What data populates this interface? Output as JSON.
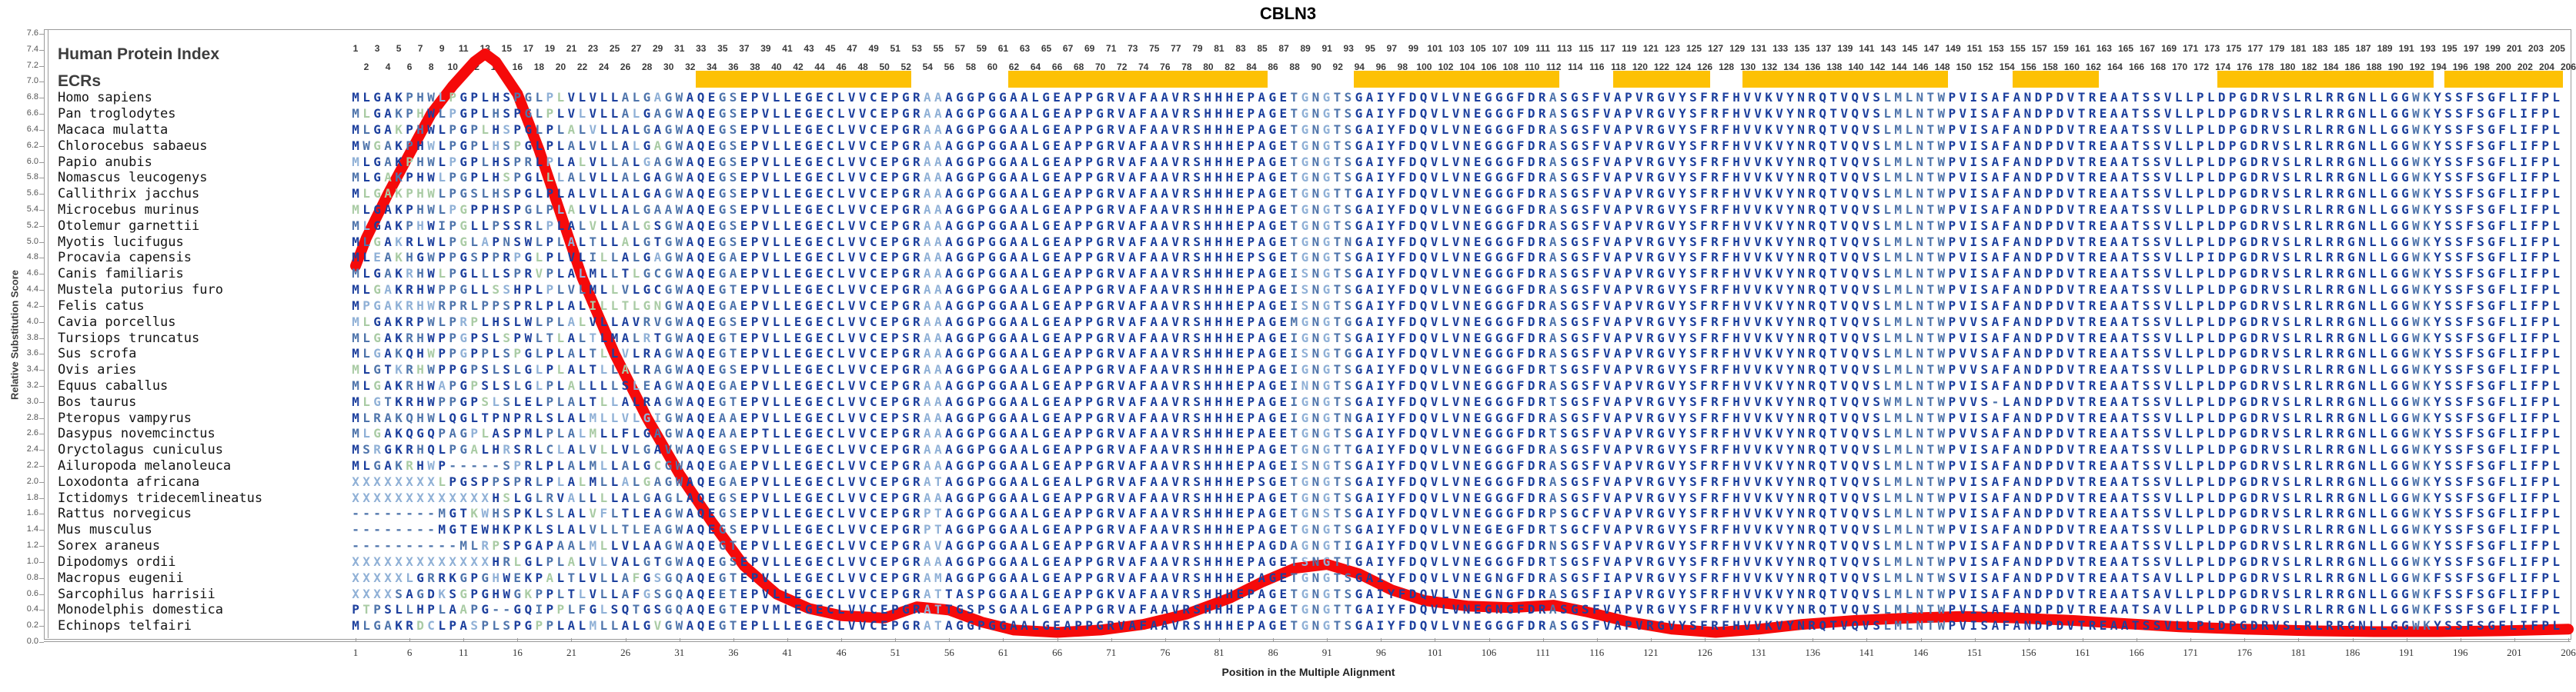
{
  "title": "CBLN3",
  "y_axis": {
    "label": "Relative Substitution Score",
    "min": 0.0,
    "max": 7.6,
    "step": 0.2
  },
  "x_axis": {
    "label": "Position in the Multiple Alignment",
    "tick_start": 1,
    "tick_step": 5,
    "tick_end": 206
  },
  "left_panel": {
    "header": "Human Protein Index",
    "ecr_label": "ECRs"
  },
  "alignment": {
    "num_positions": 206,
    "species": [
      {
        "name": "Homo sapiens",
        "seq": "MLGAKPHWLPGPLHSPGLPLVLVLLALGAGWAQEGSEPVLLEGECLVVCEPGRAAAGGPGGAALGEAPPGRVAFAAVRSHHHEPAGETGNGTSGAIYFDQVLVNEGGGFDRASGSFVAPVRGVYSFRFHVVKVYNRQTVQVSLMLNTWPVISAFANDPDVTREAATSSVLLPLDPGDRVSLRLRRGNLLGGWKYSSFSGFLIFPL"
      },
      {
        "name": "Pan troglodytes",
        "seq": "MLGAKPHWLPGPLHSPGLPLVLVLLALGAGWAQEGSEPVLLEGECLVVCEPGRAAAGGPGGAALGEAPPGRVAFAAVRSHHHEPAGETGNGTSGAIYFDQVLVNEGGGFDRASGSFVAPVRGVYSFRFHVVKVYNRQTVQVSLMLNTWPVISAFANDPDVTREAATSSVLLPLDPGDRVSLRLRRGNLLGGWKYSSFSGFLIFPL"
      },
      {
        "name": "Macaca mulatta",
        "seq": "MLGAKPHWLPGPLHSPGLPLALVLLALGAGWAQEGSEPVLLEGECLVVCEPGRAAAGGPGGAALGEAPPGRVAFAAVRSHHHEPAGETGNGTSGAIYFDQVLVNEGGGFDRASGSFVAPVRGVYSFRFHVVKVYNRQTVQVSLMLNTWPVISAFANDPDVTREAATSSVLLPLDPGDRVSLRLRRGNLLGGWKYSSFSGFLIFPL"
      },
      {
        "name": "Chlorocebus sabaeus",
        "seq": "MWGAKPHWLPGPLHSPGLPLALVLLALGAGWAQEGSEPVLLEGECLVVCEPGRAAAGGPGGAALGEAPPGRVAFAAVRSHHHEPAGETGNGTSGAIYFDQVLVNEGGGFDRASGSFVAPVRGVYSFRFHVVKVYNRQTVQVSLMLNTWPVISAFANDPDVTREAATSSVLLPLDPGDRVSLRLRRGNLLGGWKYSSFSGFLIFPL"
      },
      {
        "name": "Papio anubis",
        "seq": "MLGAKPHWLPGPLHSPRLPLALVLLALGAGWAQEGSEPVLLEGECLVVCEPGRAAAGGPGGAALGEAPPGRVAFAAVRSHHHEPAGETGNGTSGAIYFDQVLVNEGGGFDRASGSFVAPVRGVYSFRFHVVKVYNRQTVQVSLMLNTWPVISAFANDPDVTREAATSSVLLPLDPGDRVSLRLRRGNLLGGWKYSSFSGFLIFPL"
      },
      {
        "name": "Nomascus leucogenys",
        "seq": "MLGAKPHWLPGPLHSPGLLLALVLLALGAGWAQEGSEPVLLEGECLVVCEPGRAAAGGPGGAALGEAPPGRVAFAAVRSHHHEPAGETGNGTSGAIYFDQVLVNEGGGFDRASGSFVAPVRGVYSFRFHVVKVYNRQTVQVSLMLNTWPVISAFANDPDVTREAATSSVLLPLDPGDRVSLRLRRGNLLGGWKYSSFSGFLIFPL"
      },
      {
        "name": "Callithrix jacchus",
        "seq": "MLGAKPHWLPGSLHSPGLPLALVLLALGAGWAQEGSEPVLLEGECLVVCEPGRAAAGGPGGAALGEAPPGRVAFAAVRSHHHEPAGETGNGTTGAIYFDQVLVNEGGGFDRASGSFVAPVRGVYSFRFHVVKVYNRQTVQVSLMLNTWPVISAFANDPDVTREAATSSVLLPLDPGDRVSLRLRRGNLLGGWKYSSFSGFLIFPL"
      },
      {
        "name": "Microcebus murinus",
        "seq": "MLGAKPHWLPGPPHSPGLPLALVLLALGAAWAQEGSEPVLLEGECLVVCEPGRAAAGGPGGAALGEAPPGRVAFAAVRSHHHEPAGETGNGTSGAIYFDQVLVNEGGGFDRASGSFVAPVRGVYSFRFHVVKVYNRQTVQVSLMLNTWPVISAFANDPDVTREAATSSVLLPLDPGDRVSLRLRRGNLLGGWKYSSFSGFLIFPL"
      },
      {
        "name": "Otolemur garnettii",
        "seq": "MLGAKPHWIPGLLPSSRLPLALVLLALGSGWAQEGSEPVLLEGECLVVCEPGRAAAGGPGGAALGEAPPGRVAFAAVRSHHHEPAGETGNGTSGAIYFDQVLVNEGGGFDRASGSFVAPVRGVYSFRFHVVKVYNRQTVQVSLMLNTWPVISAFANDPDVTREAATSSVLLPLDPGDRVSLRLRRGNLLGGWKYSSFSGFLIFPL"
      },
      {
        "name": "Myotis lucifugus",
        "seq": "MLGAKRLWLPGLAPNSWLPLALTLLALGTGWAQEGSEPVLLEGECLVVCEPGRAAAGGPGGAALGEAPPGRVAFAAVRSHHHEPAGETGNGTNGAIYFDQVLVNEGGGFDRASGSFVAPVRGVYSFRFHVVKVYNRQTVQVSLMLNTWPVISAFANDPDVTREAATSSVLLPLDPGDRVSLRLRRGNLLGGWKYSSFSGFLIFPL"
      },
      {
        "name": "Procavia capensis",
        "seq": "MLEAKHGWPPGSPPRPGLPLVLILLALGAGWAQEGAEPVLLEGECLVVCEPGRAAAGGPGGAALGEAPPGRVAFAAVRSHHHEPSGETGNGTSGAIYFDQVLVNEGGGFDRASGSFVAPVRGVYSFRFHVVKVYNRQTVQVSLMLNTWPVISAFANDPDVTREAATSSVLLPIDPGDRVSLRLRRGNLLGGWKYSSFSGFLIFPL"
      },
      {
        "name": "Canis familiaris",
        "seq": "MLGAKRHWLPGLLLSPRVPLALMLLTLGCGWAQEGAEPVLLEGECLVVCEPGRAAAGGPGGAALGEAPPGRVAFAAVRSHHHEPAGEISNGTSGAIYFDQVLVNEGGGFDRASGSFVAPVRGVYSFRFHVVKVYNRQTVQVSLMLNTWPVISAFANDPDVTREAATSSVLLPLDPGDRVSLRLRRGNLLGGWKYSSFSGFLIFPL"
      },
      {
        "name": "Mustela putorius furo",
        "seq": "MLGAKRHWPPGLLSSHPLPLVLMLLVLGCGWAQEGTEPVLLEGECLVVCEPGRAAAGGPGGAALGEAPPGRVAFAAVRSHHHEPAGEISNGTSGAIYFDQVLVNEGGGFDRASGSFVAPVRGVYSFRFHVVKVYNRQTVQVSLMLNTWPVISAFANDPDVTREAATSSVLLPLDPGDRVSLRLRRGNLLGGWKYSSFSGFLIFPL"
      },
      {
        "name": "Felis catus",
        "seq": "MPGAKRHWRPRLPPSPRLPLALILLTLGNGWAQEGAEPVLLEGECLVVCEPGRAAAGGPGGAALGEAPPGRVAFAAVRSHHHEPAGEISNGTSGAIYFDQVLVNEGGGFDRASGSFVAPVRGVYSFRFHVVKVYNRQTVQVSLMLNTWPVISAFANDPDVTREAATSSVLLPLDPGDRVSLRLRRGNLLGGWKYSSFSGFLIFPL"
      },
      {
        "name": "Cavia porcellus",
        "seq": "MLGAKRPWLPRPLHSLWLPLALVLLAVRVGWAQEGSEPVLLEGECLVVCEPGRAAAGGPGGAALGEAPPGRVAFAAVRSHHHEPAGEMGNGTGGAIYFDQVLVNEGGGFDRASGSFVAPVRGVYSFRFHVVKVYNRQTVQVSLMLNTWPVVSAFANDPDVTREAATSSVLLPLDPGDRVSLRLRRGNLLGGWKYSSFSGFLIFPL"
      },
      {
        "name": "Tursiops truncatus",
        "seq": "MLGAKRHWPPGPSLSPWLTLALTLMALRTGWAQEGTEPVLLEGECLVVCEPSRAAAGGPGGAALGEAPPGRVAFAAVRSHHHEPAGEIGNGTSGAIYFDQVLVNEGGGFDRASGSFVAPVRGVYSFRFHVVKVYNRQTVQVSLMLNTWPVISAFANDPDVTREAATSSVLLPLDPGDRVSLRLRRGNLLGGWKYSSFSGFLIFPL"
      },
      {
        "name": "Sus scrofa",
        "seq": "MLGAKQHWPPGPPLSPGLPLALTLLVLRAGWAQEGTEPVLLEGECLVVCEPGRAAAGGPGGAALGEAPPGRVAFAAVRSHHHEPAGEISNGTGGAIYFDQVLVNEGGGFDRASGSFVAPVRGVYSFRFHVVKVYNRQTVQVSLMLNTWPVVSAFANDPDVTREAATSSVLLPLDPGDRVSLRLRRGNLLGGWKYSSFSGFLIFPL"
      },
      {
        "name": "Ovis aries",
        "seq": "MLGTKRHWPPGPSLSLGLPLALTLLALRAGWAQEGSEPVLLEGECLVVCEPGRAAAGGPGGAALGEAPPGRVAFAAVRSHHHEPAGEIGNGTSGAIYFDQVLVNEGGGFDRTSGSFVAPVRGVYSFRFHVVKVYNRQTVQVSLMLNTWPVVSAFANDPDVTREAATSSVLLPLDPGDRVSLRLRRGNLLGGWKYSSFSGFLIFPL"
      },
      {
        "name": "Equus caballus",
        "seq": "MLGAKRHWAPGPSLSLGLPLALLLLSLEAGWAQEGAEPVLLEGECLVVCEPGRAAAGGPGGAALGEAPPGRVAFAAVRSHHHEPAGEINNGTSGAIYFDQVLVNEGGGFDRASGSFVAPVRGVYSFRFHVVKVYNRQTVQVSLMLNTWPVISAFANDPDVTREAATSSVLLPLDPGDRVSLRLRRGNLLGGWKYSSFSGFLIFPL"
      },
      {
        "name": "Bos taurus",
        "seq": "MLGTKRHWPPGPSLSLELPLALTLLALRAGWAQEGTEPVLLEGECLVVCEPGRAAAGGPGGAALGEAPPGRVAFAAVRSHHHEPAGEIGNGTSGAIYFDQVLVNEGGGFDRTSGSFVAPVRGVYSFRFHVVKVYNRQTVQVSWMLNTWPVVS-LANDPDVTREAATSSVLLPLDPGDRVSLRLRRGNLLGGWKYSSFSGFLIFPL"
      },
      {
        "name": "Pteropus vampyrus",
        "seq": "MLRAKQHWLQGLTPNPRLSLALMLLVLGIGWAQEAAEPVLLEGECLVVCEPSRAAAGGPGGAALGEAPPGRVAFAAVRSHHHEPAGEIGNGTNGAIYFDQVLVNEGGGFDRASGSFVAPVRGVYSFRFHVVKVYNRQTVQVSLMLNTWPVISAFANDPDVTREAATSSVLLPLDPGDRVSLRLRRGNLLGGWKYSSFSGFLIFPL"
      },
      {
        "name": "Dasypus novemcinctus",
        "seq": "MLGAKQGQPAGPLASPMLPLALMLLFLGAGWAQEAAEPTLLEGECLVVCEPGRAAAGGPGGAALGEAPPGRVAFAAVRSHHHEPAEETGNGTSGAIYFDQVLVNEGGGFDRTSGSFVAPVRGVYSFRFHVVKVYNRQTVQVSLMLNTWPVVSAFANDPDVTREAATSSVLLPLDPGDRVSLRLRRGNLLGGWKYSSFSGFLIFPL"
      },
      {
        "name": "Oryctolagus cuniculus",
        "seq": "MSRGKRHQLPGALHRSRLCLALVLLVLGAVWAQEGSEPVLLEGECLVVCEPGRAAAGGPGGAALGEAPPGRVAFAAVRSHHHEPAGETGNGTTGAIYFDQVLVNEGGGFDRASGSFVAPVRGVYSFRFHVVKVYNRQTVQVSLMLNTWPVISAFANDPDVTREAATSSVLLPLDPGDRVSLRLRRGNLLGGWKYSSFSGFLIFPL"
      },
      {
        "name": "Ailuropoda melanoleuca",
        "seq": "MLGAKRHWP-----SPRLPLALMLLALGCGWAQEGAEPVLLEGECLVVCEPGRAAAGGPGGAALGEAPPGRVAFAAVRSHHHEPAGEISNGTSGAIYFDQVLVNEGGGFDRASGSFVAPVRGVYSFRFHVVKVYNRQTVQVSLMLNTWPVISAFANDPDVTREAATSSVLLPLDPGDRVSLRLRRGNLLGGWKYSSFSGFLIFPL"
      },
      {
        "name": "Loxodonta africana",
        "seq": "XXXXXXXXLPGSPPSPRLPLALMLLALGAGWAQEGAEPVLLEGECLVVCEPGRATAGGPGGAALGEALPGRVAFAAVRSHHHEPSGETGNGTSGAIYFDQVLVNEGGGFDRASGSFVAPVRGVYSFRFHVVKVYNRQTVQVSLMLNTWPVISAFANDPDVTREAATSSVLLPLDPGDRVSLRLRRGNLLGGWKYSSFSGFLIFPL"
      },
      {
        "name": "Ictidomys tridecemlineatus",
        "seq": "XXXXXXXXXXXXXHSLGLRVALLLLALGAGLAQEGSEPVLLEGECLVVCEPGRAAAGGPGGAALGEAPPGRVAFAAVRSHHHEPAGETGNGTSGAIYFDQVLVNEGGGFDRASGSFVAPVRGVYSFRFHVVKVYNRQTVQVSLMLNTWPVISAFANDPDVTREAATSSVLLPLDPGDRVSLRLRRGNLLGGWKYSSFSGFLIFPL"
      },
      {
        "name": "Rattus norvegicus",
        "seq": "--------MGTKWHSPKLSLALVFLTLEAGWAQEGSEPVLLEGECLVVCEPGRPTAGGPGGAALGEAPPGRVAFAAVRSHHHEPAGETGNSTSGAIYFDQVLVNEGGGFDRPSGCFVAPVRGVYSFRFHVVKVYNRQTVQVSLMLNTWPVISAFANDPDVTREAATSSVLLPLDPGDRVSLRLRRGNLLGGWKYSSFSGFLIFPL"
      },
      {
        "name": "Mus musculus",
        "seq": "--------MGTEWHKPKLSLALVLLTLEAGWAQEGSEPVLLEGECLVVCEPGRPTAGGPGGAALGEAPPGRVAFAAVRSHHHEPAGETGNGTSGAIYFDQVLVNEGEGFDRTSGCFVAPVRGVYSFRFHVVKVYNRQTVQVSLMLNTWPVISAFANDPDVTREAATSSVLLPLDPGDRVSLRLRRGNLLGGWKYSSFSGFLIFPL"
      },
      {
        "name": "Sorex araneus",
        "seq": "----------MLRPSPGAPAALMLLVLAAGWAQEGTEPVLLEGECLVVCEPGRAVAGGPGGAALGEAPPGRVAFAAVRSHHHEPAGDAGNGTIGAIYFDQVLVNEGGGFDRNSGSFVAPVRGVYSFRFHVVKVYNRQTVQVSLMLNTWPVISAFANDPDVTREAATSSVLLPLDPGDRVSLRLRRGNLLGGWKYSSFSGFLIFPL"
      },
      {
        "name": "Dipodomys ordii",
        "seq": "XXXXXXXXXXXXXHRLGLPLALVLVALGTGWAQEGSEPVLLEGECLVVCEPGRAAAGGPGGAALGEAPPGRVAFAAVRSHHHEPAGETSNGTTGAIYFDQVLVNEGGGFDRTSGSFVAPVRGVYSFRFHVVKVYNRQTVQVSLMLNTWPVISAFANDPDVTREAATSSVLLPLDPGDRVSLRLRRGNLLGGWKYSSFSGFLIFPL"
      },
      {
        "name": "Macropus eugenii",
        "seq": "XXXXXLGRRKGPGHWEKPALTLVLLAFGSGQAQEGTEPVLLEGECLVVCEPGRAMAGGPGGAALGEAPPGRVAFAAVRSHHHEPAGETGNGTSGAIYFDQVLVNEGNGFDRASGSFIAPVRGVYSFRFHVVKVYNRQTVQVSLMLNTWSVISAFANDPDVTREAATSAVLLPLDPGDRVSLRLRRGNLLGGWKFSSFSGFLIFPL"
      },
      {
        "name": "Sarcophilus harrisii",
        "seq": "XXXXSAGDKSGPGHWGKPPLTLVLLAFGSGQAQEETEPVLLEGECLVVCEPGRATTASPGGAALGEAPPGKVAFAAVRSHHHEPAGETGNGTSGAIYFDQVLVNEGNGFDRASGSFIAPVRGVYSFRFHVVKVYNRQTVQVSLMLNTWPVISAFANDPDVTREAATSAVLLPLDPGDRVSLRLRRGNLLGGWKFSSFSGFLIFPL"
      },
      {
        "name": "Monodelphis domestica",
        "seq": "PTPSLLHPLAAPG--GQIPPLFGLSQTGSGQAQEGTEPVMLEGECLVVCEPGRATTGSPSGAALGEAPPGRVAFAAVRSHHHEPAGETGNGTTGAIYFDQVLVNEGNGFDRASGSFVAPVRGVYSFRFHVVKVYNRQTVQVSLMLNTWPVISAFANDPDVTREAATSAVLLPLDPGDRVSLRLRRGNLLGGWKFSSFSGFLIFPL"
      },
      {
        "name": "Echinops telfairi",
        "seq": "MLGAKRDCLPASPLSPGPPLALMLLALGVGWAQEGTEPLLLEGECLVVCEPGRATAGGPGGAALGEAPPGRVAFAAVRSHHHEPAGETGNGTSGAIYFDQVLVNEGGGFDRASGSFVAPVRGVYSFRFHVVKVYNRQTVQVSLMLNTWPVISAFANDPDVTREAATSSVLLPLDPGDRVSLRLRRGNLLGGWKYSSFSGFLIFPL"
      }
    ]
  },
  "ecr_regions": [
    [
      33,
      52
    ],
    [
      62,
      85
    ],
    [
      94,
      112
    ],
    [
      118,
      126
    ],
    [
      130,
      148
    ],
    [
      155,
      162
    ],
    [
      174,
      193
    ],
    [
      195,
      205
    ]
  ],
  "chart_data": {
    "type": "line",
    "title": "CBLN3",
    "xlabel": "Position in the Multiple Alignment",
    "ylabel": "Relative Substitution Score",
    "xlim": [
      1,
      206
    ],
    "ylim": [
      0.0,
      7.6
    ],
    "grid": false,
    "series": [
      {
        "name": "relative-substitution-score",
        "points": [
          [
            1,
            4.7
          ],
          [
            2,
            5.05
          ],
          [
            4,
            5.6
          ],
          [
            6,
            6.1
          ],
          [
            8,
            6.6
          ],
          [
            10,
            6.95
          ],
          [
            12,
            7.25
          ],
          [
            13,
            7.35
          ],
          [
            14,
            7.25
          ],
          [
            16,
            6.85
          ],
          [
            18,
            6.15
          ],
          [
            20,
            5.35
          ],
          [
            22,
            4.55
          ],
          [
            25,
            3.6
          ],
          [
            28,
            2.8
          ],
          [
            31,
            2.1
          ],
          [
            34,
            1.5
          ],
          [
            37,
            0.95
          ],
          [
            40,
            0.6
          ],
          [
            43,
            0.42
          ],
          [
            46,
            0.33
          ],
          [
            50,
            0.3
          ],
          [
            53,
            0.44
          ],
          [
            56,
            0.4
          ],
          [
            59,
            0.25
          ],
          [
            62,
            0.15
          ],
          [
            66,
            0.12
          ],
          [
            70,
            0.15
          ],
          [
            74,
            0.22
          ],
          [
            78,
            0.35
          ],
          [
            82,
            0.55
          ],
          [
            85,
            0.75
          ],
          [
            88,
            0.92
          ],
          [
            91,
            0.97
          ],
          [
            94,
            0.85
          ],
          [
            97,
            0.65
          ],
          [
            100,
            0.52
          ],
          [
            104,
            0.45
          ],
          [
            108,
            0.43
          ],
          [
            112,
            0.46
          ],
          [
            115,
            0.38
          ],
          [
            119,
            0.25
          ],
          [
            123,
            0.16
          ],
          [
            127,
            0.12
          ],
          [
            131,
            0.16
          ],
          [
            135,
            0.22
          ],
          [
            140,
            0.27
          ],
          [
            145,
            0.3
          ],
          [
            150,
            0.32
          ],
          [
            155,
            0.3
          ],
          [
            160,
            0.27
          ],
          [
            165,
            0.23
          ],
          [
            170,
            0.19
          ],
          [
            176,
            0.16
          ],
          [
            182,
            0.14
          ],
          [
            188,
            0.13
          ],
          [
            194,
            0.13
          ],
          [
            200,
            0.14
          ],
          [
            206,
            0.16
          ]
        ]
      }
    ]
  },
  "colors": {
    "sequence_navy": "#1c3f9d",
    "sequence_steel": "#4e74ab",
    "sequence_light": "#8fb0d6",
    "sequence_green": "#a9cba4",
    "ecr_bar": "#fdc104",
    "curve_red": "#f50a0a",
    "axis": "#9a9a9a",
    "tick_text": "#555555",
    "label_text": "#141414",
    "header_text": "#3d3d3d",
    "number_text": "#3a3a3a"
  }
}
